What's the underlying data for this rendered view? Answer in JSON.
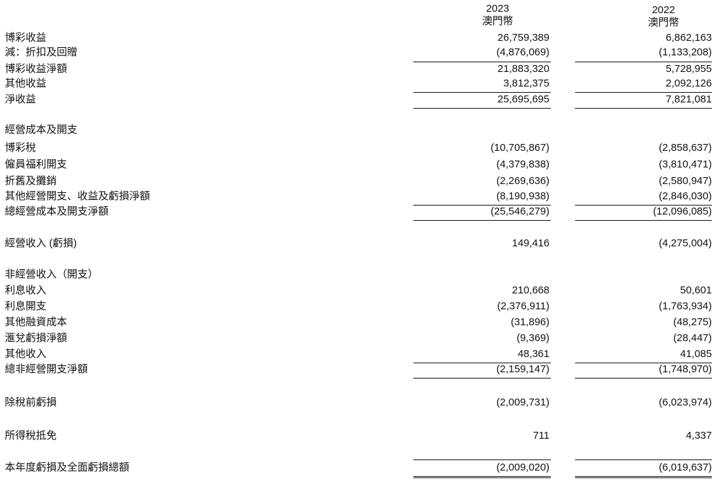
{
  "header": {
    "columns": [
      {
        "year": "2023",
        "currency": "澳門幣"
      },
      {
        "year": "2022",
        "currency": "澳門幣"
      }
    ]
  },
  "rows": [
    {
      "label": "博彩收益",
      "v2023": "26,759,389",
      "v2022": "6,862,163"
    },
    {
      "label": "減：折扣及回贈",
      "v2023": "(4,876,069)",
      "v2022": "(1,133,208)"
    },
    {
      "label": "博彩收益淨額",
      "v2023": "21,883,320",
      "v2022": "5,728,955"
    },
    {
      "label": "其他收益",
      "v2023": "3,812,375",
      "v2022": "2,092,126"
    },
    {
      "label": "淨收益",
      "v2023": "25,695,695",
      "v2022": "7,821,081"
    },
    {
      "label": "經營成本及開支",
      "v2023": "",
      "v2022": ""
    },
    {
      "label": "博彩稅",
      "v2023": "(10,705,867)",
      "v2022": "(2,858,637)"
    },
    {
      "label": "僱員福利開支",
      "v2023": "(4,379,838)",
      "v2022": "(3,810,471)"
    },
    {
      "label": "折舊及攤銷",
      "v2023": "(2,269,636)",
      "v2022": "(2,580,947)"
    },
    {
      "label": "其他經營開支、收益及虧損淨額",
      "v2023": "(8,190,938)",
      "v2022": "(2,846,030)"
    },
    {
      "label": "總經營成本及開支淨額",
      "v2023": "(25,546,279)",
      "v2022": "(12,096,085)"
    },
    {
      "label": "經營收入 (虧損)",
      "v2023": "149,416",
      "v2022": "(4,275,004)"
    },
    {
      "label": "非經營收入（開支）",
      "v2023": "",
      "v2022": ""
    },
    {
      "label": "利息收入",
      "v2023": "210,668",
      "v2022": "50,601"
    },
    {
      "label": "利息開支",
      "v2023": "(2,376,911)",
      "v2022": "(1,763,934)"
    },
    {
      "label": "其他融資成本",
      "v2023": "(31,896)",
      "v2022": "(48,275)"
    },
    {
      "label": "滙兌虧損淨額",
      "v2023": "(9,369)",
      "v2022": "(28,447)"
    },
    {
      "label": "其他收入",
      "v2023": "48,361",
      "v2022": "41,085"
    },
    {
      "label": "總非經營開支淨額",
      "v2023": "(2,159,147)",
      "v2022": "(1,748,970)"
    },
    {
      "label": "除稅前虧損",
      "v2023": "(2,009,731)",
      "v2022": "(6,023,974)"
    },
    {
      "label": "所得稅抵免",
      "v2023": "711",
      "v2022": "4,337"
    },
    {
      "label": "本年度虧損及全面虧損總額",
      "v2023": "(2,009,020)",
      "v2022": "(6,019,637)"
    }
  ]
}
